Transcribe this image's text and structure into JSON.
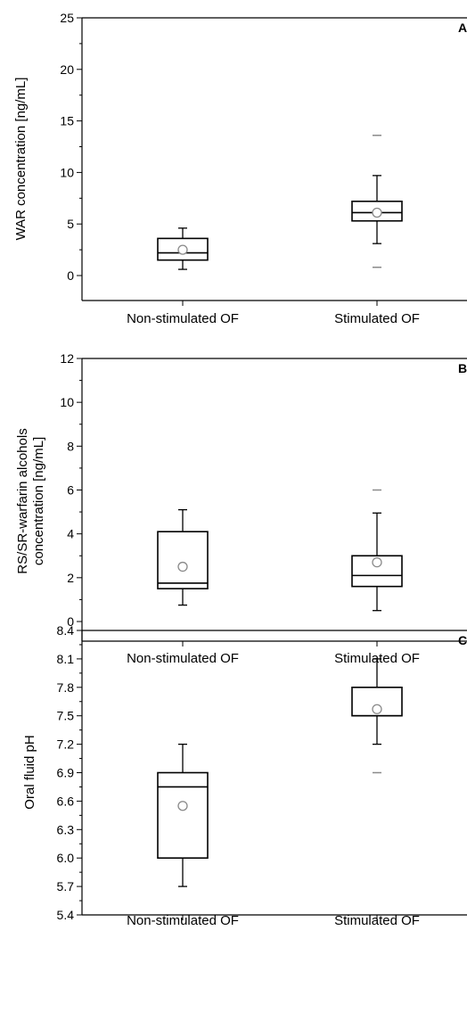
{
  "chart_data": [
    {
      "type": "box",
      "panel_label": "A",
      "ylabel": "WAR concentration [ng/mL]",
      "xlabel": "",
      "ylim": [
        -2,
        25
      ],
      "yticks": [
        0,
        5,
        10,
        15,
        20,
        25
      ],
      "categories": [
        "Non-stimulated OF",
        "Stimulated OF"
      ],
      "boxes": [
        {
          "whisker_low": 0.6,
          "q1": 1.5,
          "median": 2.2,
          "q3": 3.6,
          "whisker_high": 4.6,
          "mean": 2.5,
          "outliers": []
        },
        {
          "whisker_low": 3.1,
          "q1": 5.3,
          "median": 6.1,
          "q3": 7.2,
          "whisker_high": 9.7,
          "mean": 6.1,
          "outliers": [
            0.8,
            13.6
          ]
        }
      ]
    },
    {
      "type": "box",
      "panel_label": "B",
      "ylabel": "RS/SR-warfarin alcohols concentration [ng/mL]",
      "ylabel_lines": [
        "RS/SR-warfarin alcohols",
        "concentration [ng/mL]"
      ],
      "xlabel": "",
      "ylim": [
        -0.8,
        12
      ],
      "yticks": [
        0,
        2,
        4,
        6,
        8,
        10,
        12
      ],
      "categories": [
        "Non-stimulated OF",
        "Stimulated OF"
      ],
      "boxes": [
        {
          "whisker_low": 0.75,
          "q1": 1.5,
          "median": 1.75,
          "q3": 4.1,
          "whisker_high": 5.1,
          "mean": 2.5,
          "outliers": []
        },
        {
          "whisker_low": 0.5,
          "q1": 1.6,
          "median": 2.1,
          "q3": 3.0,
          "whisker_high": 4.95,
          "mean": 2.7,
          "outliers": [
            6.0
          ]
        }
      ]
    },
    {
      "type": "box",
      "panel_label": "C",
      "ylabel": "Oral fluid pH",
      "xlabel": "",
      "ylim": [
        5.4,
        8.4
      ],
      "yticks": [
        "5.4",
        "5.7",
        "6.0",
        "6.3",
        "6.6",
        "6.9",
        "7.2",
        "7.5",
        "7.8",
        "8.1",
        "8.4"
      ],
      "categories": [
        "Non-stimulated OF",
        "Stimulated OF"
      ],
      "boxes": [
        {
          "whisker_low": 5.7,
          "q1": 6.0,
          "median": 6.75,
          "q3": 6.9,
          "whisker_high": 7.2,
          "mean": 6.55,
          "outliers": []
        },
        {
          "whisker_low": 7.2,
          "q1": 7.5,
          "median": 7.5,
          "q3": 7.8,
          "whisker_high": 8.1,
          "mean": 7.57,
          "outliers": [
            6.9
          ]
        }
      ]
    }
  ]
}
